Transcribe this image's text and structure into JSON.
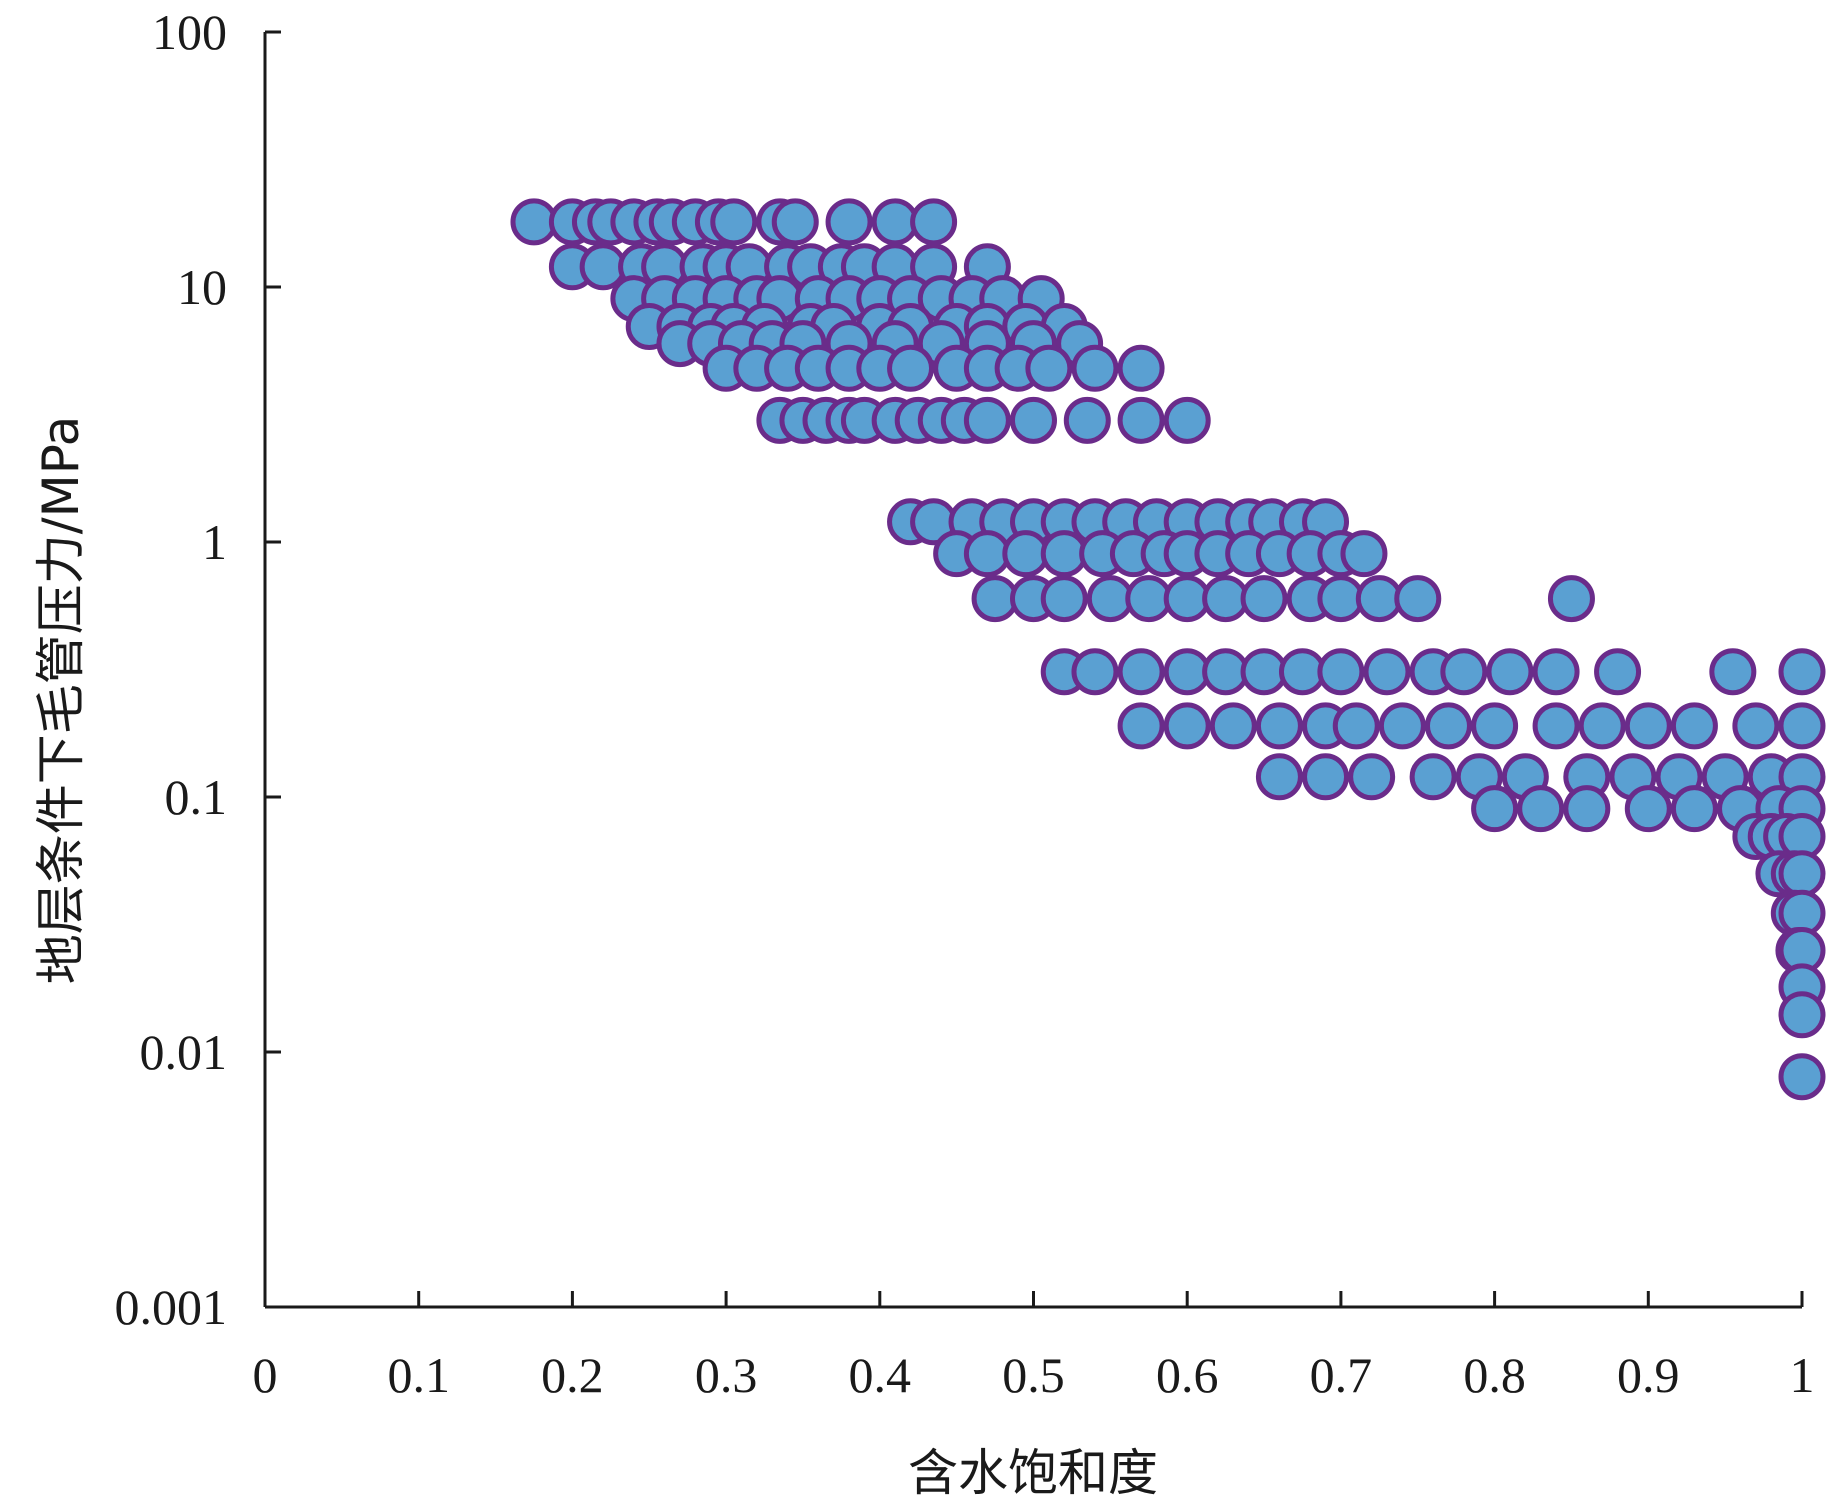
{
  "chart_data": {
    "type": "scatter",
    "xlabel": "含水饱和度",
    "ylabel": "地层条件下毛管压力/MPa",
    "xlim": [
      0,
      1
    ],
    "ylim": [
      0.001,
      100
    ],
    "yscale": "log",
    "grid": false,
    "legend": "none",
    "x_ticks": [
      "0",
      "0.1",
      "0.2",
      "0.3",
      "0.4",
      "0.5",
      "0.6",
      "0.7",
      "0.8",
      "0.9",
      "1"
    ],
    "y_ticks": [
      "0.001",
      "0.01",
      "0.1",
      "1",
      "10",
      "100"
    ],
    "marker_fill": "#5aa0d2",
    "marker_edge": "#6a2c8a",
    "series": [
      {
        "bands": [
          {
            "y": 18,
            "x": [
              0.175,
              0.2,
              0.215,
              0.225,
              0.24,
              0.255,
              0.265,
              0.28,
              0.295,
              0.305,
              0.335,
              0.345,
              0.38,
              0.41,
              0.435
            ]
          },
          {
            "y": 12,
            "x": [
              0.2,
              0.22,
              0.245,
              0.26,
              0.285,
              0.3,
              0.315,
              0.34,
              0.355,
              0.375,
              0.39,
              0.41,
              0.435,
              0.47
            ]
          },
          {
            "y": 9,
            "x": [
              0.24,
              0.26,
              0.28,
              0.3,
              0.32,
              0.335,
              0.36,
              0.38,
              0.4,
              0.42,
              0.44,
              0.46,
              0.48,
              0.505
            ]
          },
          {
            "y": 7,
            "x": [
              0.25,
              0.27,
              0.29,
              0.305,
              0.325,
              0.355,
              0.37,
              0.4,
              0.42,
              0.45,
              0.47,
              0.495,
              0.52
            ]
          },
          {
            "y": 6,
            "x": [
              0.27,
              0.29,
              0.31,
              0.33,
              0.35,
              0.38,
              0.41,
              0.44,
              0.47,
              0.5,
              0.53
            ]
          },
          {
            "y": 4.8,
            "x": [
              0.3,
              0.32,
              0.34,
              0.36,
              0.38,
              0.4,
              0.42,
              0.45,
              0.47,
              0.49,
              0.51,
              0.54,
              0.57
            ]
          },
          {
            "y": 3,
            "x": [
              0.335,
              0.35,
              0.365,
              0.38,
              0.39,
              0.41,
              0.425,
              0.44,
              0.455,
              0.47,
              0.5,
              0.535,
              0.57,
              0.6
            ]
          },
          {
            "y": 1.2,
            "x": [
              0.42,
              0.435,
              0.46,
              0.48,
              0.5,
              0.52,
              0.54,
              0.56,
              0.58,
              0.6,
              0.62,
              0.64,
              0.655,
              0.675,
              0.69
            ]
          },
          {
            "y": 0.9,
            "x": [
              0.45,
              0.47,
              0.495,
              0.52,
              0.545,
              0.565,
              0.585,
              0.6,
              0.62,
              0.64,
              0.66,
              0.68,
              0.7,
              0.715
            ]
          },
          {
            "y": 0.6,
            "x": [
              0.475,
              0.5,
              0.52,
              0.55,
              0.575,
              0.6,
              0.625,
              0.65,
              0.68,
              0.7,
              0.725,
              0.75,
              0.85
            ]
          },
          {
            "y": 0.31,
            "x": [
              0.52,
              0.54,
              0.57,
              0.6,
              0.625,
              0.65,
              0.675,
              0.7,
              0.73,
              0.76,
              0.78,
              0.81,
              0.84,
              0.88,
              0.955,
              1.0
            ]
          },
          {
            "y": 0.19,
            "x": [
              0.57,
              0.6,
              0.63,
              0.66,
              0.69,
              0.71,
              0.74,
              0.77,
              0.8,
              0.84,
              0.87,
              0.9,
              0.93,
              0.97,
              1.0
            ]
          },
          {
            "y": 0.12,
            "x": [
              0.66,
              0.69,
              0.72,
              0.76,
              0.79,
              0.82,
              0.86,
              0.89,
              0.92,
              0.95,
              0.98,
              1.0
            ]
          },
          {
            "y": 0.09,
            "x": [
              0.8,
              0.83,
              0.86,
              0.9,
              0.93,
              0.96,
              0.985,
              1.0
            ]
          },
          {
            "y": 0.07,
            "x": [
              0.97,
              0.98,
              0.99,
              1.0
            ]
          },
          {
            "y": 0.05,
            "x": [
              0.985,
              0.995,
              1.0
            ]
          },
          {
            "y": 0.035,
            "x": [
              0.995,
              1.0
            ]
          },
          {
            "y": 0.025,
            "x": [
              0.998,
              1.0
            ]
          },
          {
            "y": 0.018,
            "x": [
              1.0
            ]
          },
          {
            "y": 0.014,
            "x": [
              1.0
            ]
          },
          {
            "y": 0.008,
            "x": [
              1.0
            ]
          }
        ]
      }
    ]
  }
}
